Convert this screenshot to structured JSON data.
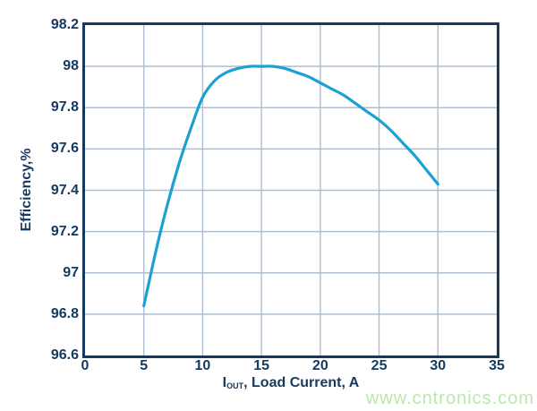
{
  "watermark": {
    "text": "www.cntronics.com",
    "color": "#BDE6AE"
  },
  "colors": {
    "curve": "#1BA1D2",
    "grid": "#AFBECD",
    "axis": "#16395F",
    "background": "#FFFFFF"
  },
  "chart_data": {
    "type": "line",
    "title": "",
    "xlabel": "IOUT, Load Current, A",
    "xlabel_parts": {
      "main": "I",
      "sub": "OUT",
      "rest": ", Load Current, A"
    },
    "ylabel": "Efficiency,%",
    "xlim": [
      0,
      35
    ],
    "ylim": [
      96.6,
      98.2
    ],
    "x_ticks": [
      0,
      5,
      10,
      15,
      20,
      25,
      30,
      35
    ],
    "y_ticks": [
      96.6,
      96.8,
      97,
      97.2,
      97.4,
      97.6,
      97.8,
      98,
      98.2
    ],
    "grid": true,
    "legend": "none",
    "series": [
      {
        "name": "efficiency-vs-load-current",
        "x": [
          5,
          6,
          7,
          8,
          9,
          10,
          11,
          12,
          13,
          14,
          15,
          16,
          17,
          18,
          19,
          20,
          21,
          22,
          23,
          24,
          25,
          26,
          27,
          28,
          29,
          30
        ],
        "y": [
          96.84,
          97.1,
          97.33,
          97.53,
          97.7,
          97.85,
          97.93,
          97.97,
          97.99,
          98.0,
          98.0,
          98.0,
          97.99,
          97.97,
          97.95,
          97.92,
          97.89,
          97.86,
          97.82,
          97.78,
          97.74,
          97.69,
          97.63,
          97.57,
          97.5,
          97.43
        ]
      }
    ]
  }
}
